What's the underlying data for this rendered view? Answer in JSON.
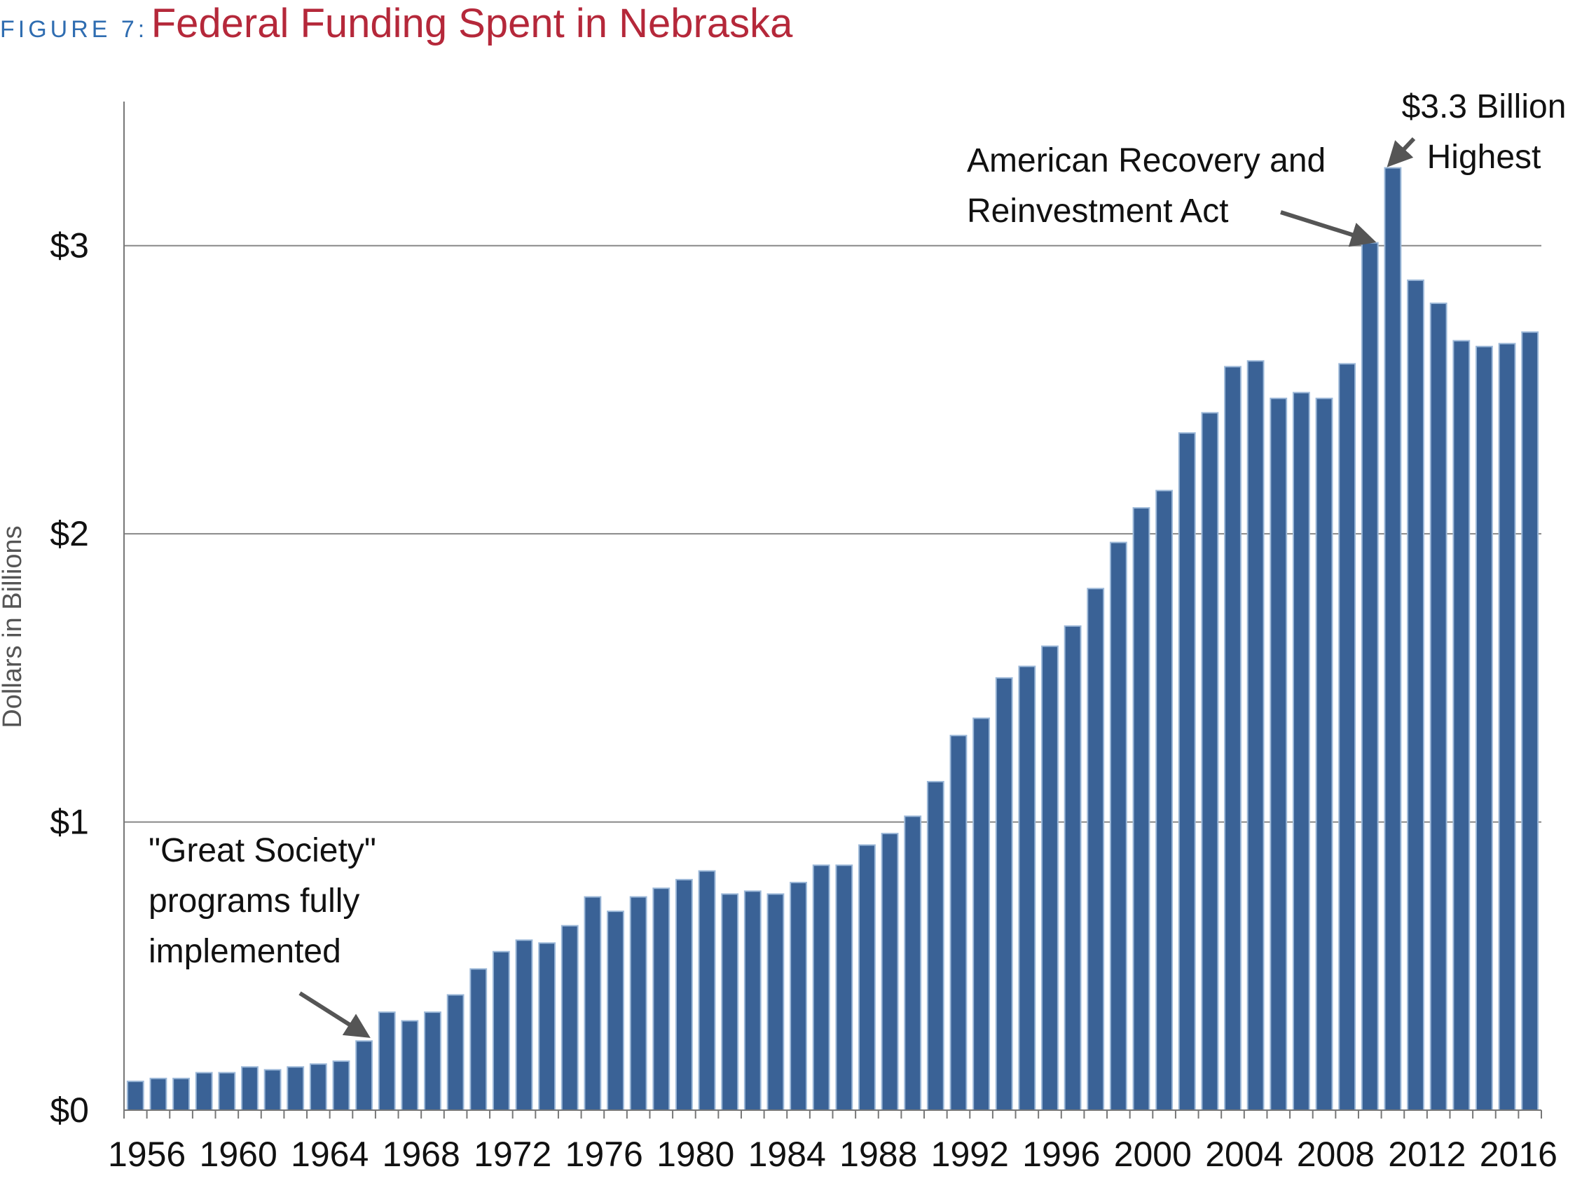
{
  "header": {
    "figure_label": "FIGURE 7:",
    "title": "Federal Funding Spent in Nebraska"
  },
  "chart_data": {
    "type": "bar",
    "title": "Federal Funding Spent in Nebraska",
    "xlabel": "",
    "ylabel": "Dollars in Billions",
    "ylim": [
      0,
      3.5
    ],
    "yticks": [
      0,
      1,
      2,
      3
    ],
    "ytick_labels": [
      "$0",
      "$1",
      "$2",
      "$3"
    ],
    "xtick_labels": [
      "1956",
      "1960",
      "1964",
      "1968",
      "1972",
      "1976",
      "1980",
      "1984",
      "1988",
      "1992",
      "1996",
      "2000",
      "2004",
      "2008",
      "2012",
      "2016"
    ],
    "grid": "horizontal",
    "legend": "none",
    "bar_color": "#3a6296",
    "bar_edge_color": "#9cb8d8",
    "grid_color": "#888888",
    "categories": [
      "1956",
      "1957",
      "1958",
      "1959",
      "1960",
      "1961",
      "1962",
      "1963",
      "1964",
      "1965",
      "1966",
      "1967",
      "1968",
      "1969",
      "1970",
      "1971",
      "1972",
      "1973",
      "1974",
      "1975",
      "1976",
      "1977",
      "1978",
      "1979",
      "1980",
      "1981",
      "1982",
      "1983",
      "1984",
      "1985",
      "1986",
      "1987",
      "1988",
      "1989",
      "1990",
      "1991",
      "1992",
      "1993",
      "1994",
      "1995",
      "1996",
      "1997",
      "1998",
      "1999",
      "2000",
      "2001",
      "2002",
      "2003",
      "2004",
      "2005",
      "2006",
      "2007",
      "2008",
      "2009",
      "2010",
      "2011",
      "2012",
      "2013",
      "2014",
      "2015",
      "2016",
      "2017"
    ],
    "values": [
      0.1,
      0.11,
      0.11,
      0.13,
      0.13,
      0.15,
      0.14,
      0.15,
      0.16,
      0.17,
      0.24,
      0.34,
      0.31,
      0.34,
      0.4,
      0.49,
      0.55,
      0.59,
      0.58,
      0.64,
      0.74,
      0.69,
      0.74,
      0.77,
      0.8,
      0.83,
      0.75,
      0.76,
      0.75,
      0.79,
      0.85,
      0.85,
      0.92,
      0.96,
      1.02,
      1.14,
      1.3,
      1.36,
      1.5,
      1.54,
      1.61,
      1.68,
      1.81,
      1.97,
      2.09,
      2.15,
      2.35,
      2.42,
      2.58,
      2.6,
      2.47,
      2.49,
      2.47,
      2.59,
      3.01,
      3.27,
      2.88,
      2.8,
      2.67,
      2.65,
      2.66,
      2.7
    ],
    "annotations": [
      {
        "lines": [
          "\"Great Society\"",
          "programs fully",
          "implemented"
        ],
        "points_to": "1966"
      },
      {
        "lines": [
          "American Recovery and",
          "Reinvestment Act"
        ],
        "points_to": "2010"
      },
      {
        "lines": [
          "$3.3 Billion",
          "Highest"
        ],
        "points_to": "2011"
      }
    ]
  }
}
